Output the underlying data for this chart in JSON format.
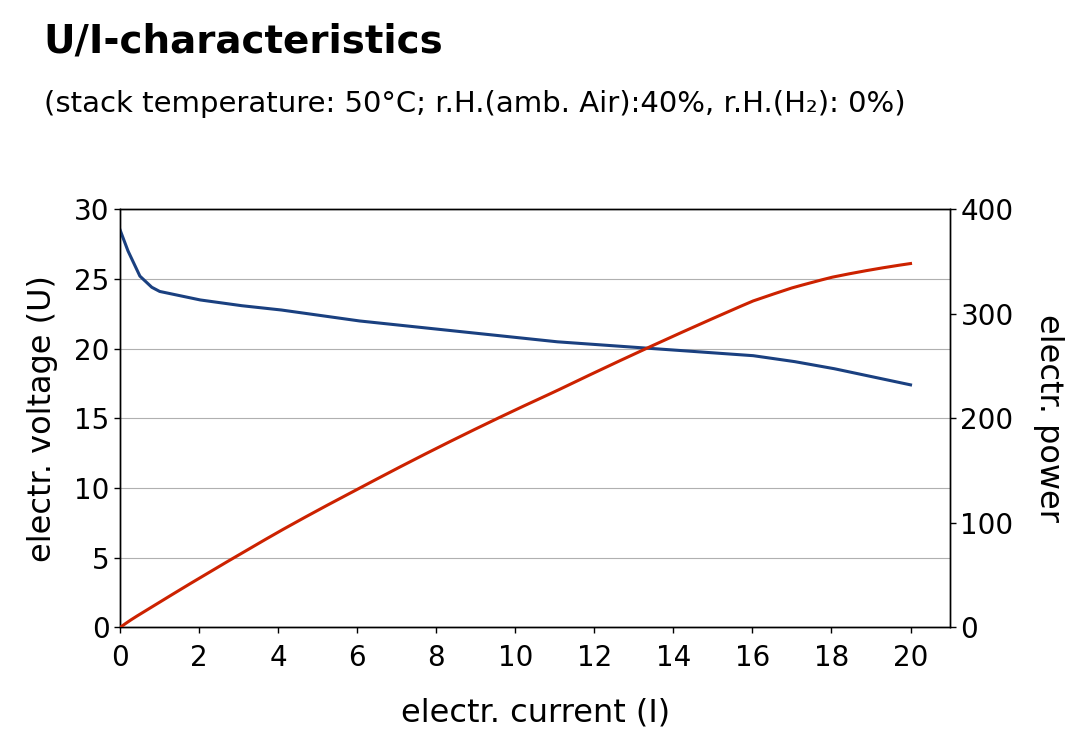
{
  "title": "U/I-characteristics",
  "subtitle": "(stack temperature: 50°C; r.H.(amb. Air):40%, r.H.(H₂): 0%)",
  "xlabel": "electr. current (I)",
  "ylabel_left": "electr. voltage (U)",
  "ylabel_right": "electr. power",
  "xlim": [
    0,
    21
  ],
  "ylim_left": [
    0,
    30
  ],
  "ylim_right": [
    0,
    400
  ],
  "xticks": [
    0,
    2,
    4,
    6,
    8,
    10,
    12,
    14,
    16,
    18,
    20
  ],
  "yticks_left": [
    0,
    5,
    10,
    15,
    20,
    25,
    30
  ],
  "yticks_right": [
    0,
    100,
    200,
    300,
    400
  ],
  "voltage_color": "#1a4080",
  "power_color": "#cc2200",
  "background_color": "#ffffff",
  "title_fontsize": 28,
  "subtitle_fontsize": 21,
  "axis_label_fontsize": 23,
  "tick_fontsize": 20,
  "voltage_points_i": [
    0,
    0.2,
    0.5,
    0.8,
    1.0,
    1.5,
    2,
    3,
    4,
    5,
    6,
    7,
    8,
    9,
    10,
    11,
    12,
    13,
    13.5,
    14,
    15,
    16,
    17,
    18,
    19,
    20
  ],
  "voltage_points_v": [
    28.5,
    27.0,
    25.2,
    24.4,
    24.1,
    23.8,
    23.5,
    23.1,
    22.8,
    22.4,
    22.0,
    21.7,
    21.4,
    21.1,
    20.8,
    20.5,
    20.3,
    20.1,
    20.0,
    19.9,
    19.7,
    19.5,
    19.1,
    18.6,
    18.0,
    17.4
  ]
}
